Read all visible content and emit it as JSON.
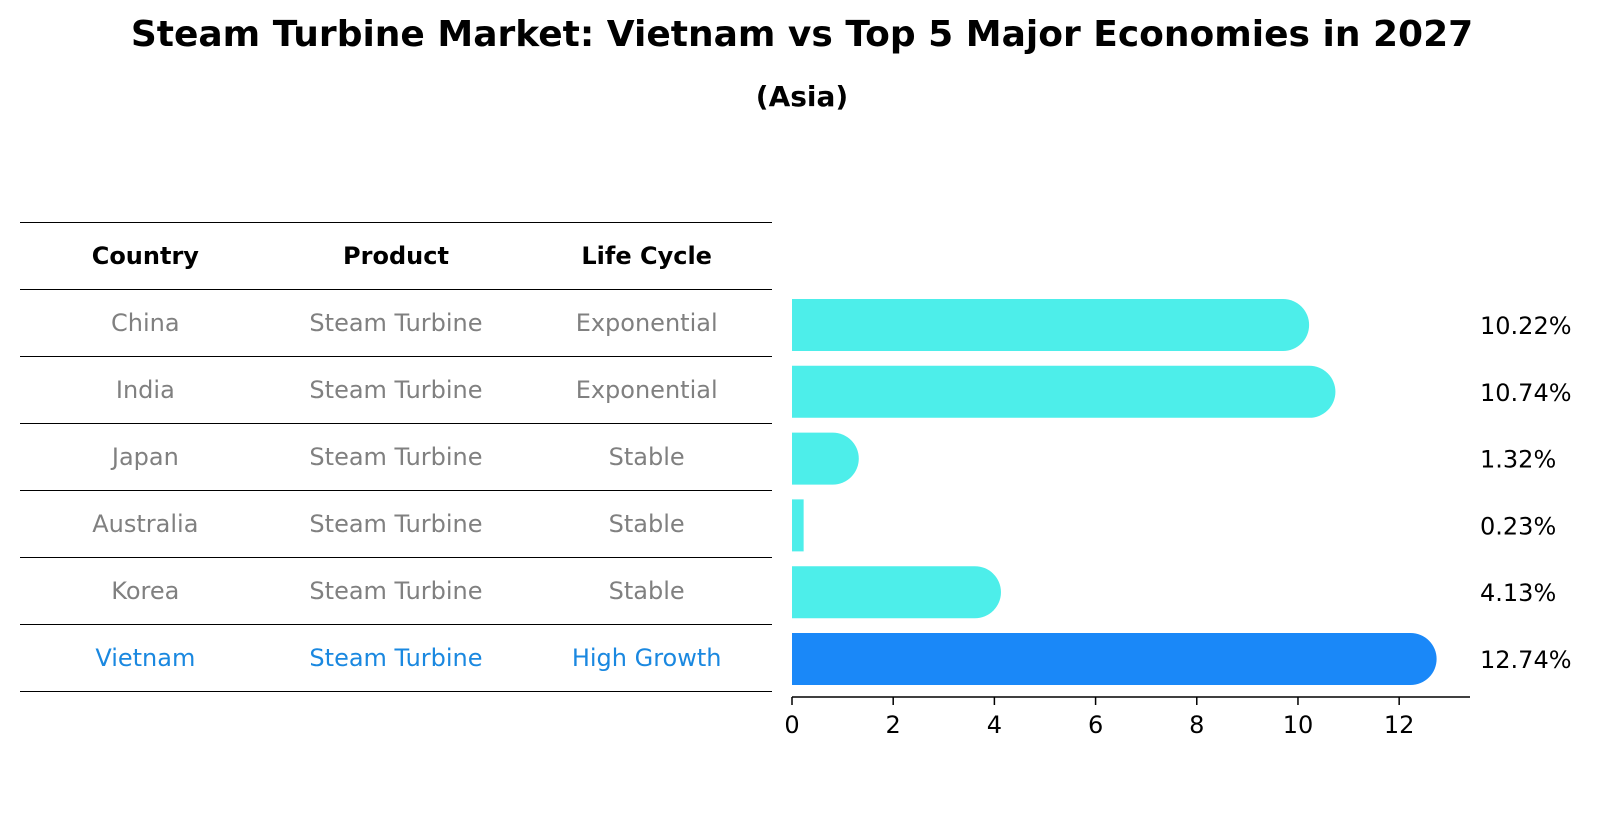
{
  "title": "Steam Turbine Market: Vietnam vs Top 5 Major Economies in 2027",
  "subtitle": "(Asia)",
  "table": {
    "headers": [
      "Country",
      "Product",
      "Life Cycle"
    ],
    "rows": [
      [
        "China",
        "Steam Turbine",
        "Exponential"
      ],
      [
        "India",
        "Steam Turbine",
        "Exponential"
      ],
      [
        "Japan",
        "Steam Turbine",
        "Stable"
      ],
      [
        "Australia",
        "Steam Turbine",
        "Stable"
      ],
      [
        "Korea",
        "Steam Turbine",
        "Stable"
      ],
      [
        "Vietnam",
        "Steam Turbine",
        "High Growth"
      ]
    ]
  },
  "colors": {
    "bar": "#4deeea",
    "highlight": "#1a88f8",
    "highlight_text": "#1a88e0",
    "muted_text": "#808080"
  },
  "chart_data": {
    "type": "bar",
    "orientation": "horizontal",
    "categories": [
      "China",
      "India",
      "Japan",
      "Australia",
      "Korea",
      "Vietnam"
    ],
    "values": [
      10.22,
      10.74,
      1.32,
      0.23,
      4.13,
      12.74
    ],
    "value_labels": [
      "10.22%",
      "10.74%",
      "1.32%",
      "0.23%",
      "4.13%",
      "12.74%"
    ],
    "highlight": "Vietnam",
    "xlim": [
      0,
      13.4
    ],
    "xticks": [
      0,
      2,
      4,
      6,
      8,
      10,
      12
    ],
    "xlabel": "",
    "ylabel": "",
    "title": "Steam Turbine Market: Vietnam vs Top 5 Major Economies in 2027"
  }
}
